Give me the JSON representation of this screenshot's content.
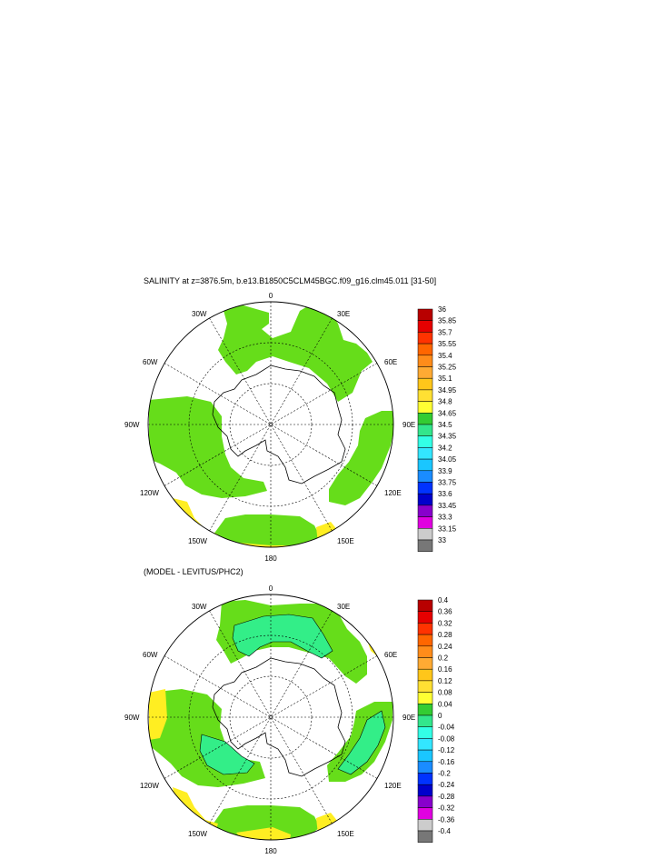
{
  "panels": [
    {
      "title": "SALINITY at z=3876.5m, b.e13.B1850C5CLM45BGC.f09_g16.clm45.011 [31-50]",
      "lon_labels": [
        "0",
        "30E",
        "60E",
        "90E",
        "120E",
        "150E",
        "180",
        "150W",
        "120W",
        "90W",
        "60W",
        "30W"
      ],
      "colorbar": {
        "labels": [
          "36",
          "35.85",
          "35.7",
          "35.55",
          "35.4",
          "35.25",
          "35.1",
          "34.95",
          "34.8",
          "34.65",
          "34.5",
          "34.35",
          "34.2",
          "34.05",
          "33.9",
          "33.75",
          "33.6",
          "33.45",
          "33.3",
          "33.15",
          "33"
        ],
        "colors": [
          "#b80000",
          "#e60000",
          "#ff3300",
          "#ff6600",
          "#ff8c1a",
          "#ffaa33",
          "#ffc61a",
          "#ffe033",
          "#ffff33",
          "#33cc33",
          "#33e68c",
          "#33ffe6",
          "#33e6ff",
          "#1ac6ff",
          "#1a8cff",
          "#0033ff",
          "#0000cc",
          "#8800cc",
          "#e000e0",
          "#cccccc",
          "#777777"
        ]
      },
      "fill_primary": "#66dd1a",
      "fill_secondary": "#ffee22"
    },
    {
      "title": "(MODEL - LEVITUS/PHC2)",
      "lon_labels": [
        "0",
        "30E",
        "60E",
        "90E",
        "120E",
        "150E",
        "180",
        "150W",
        "120W",
        "90W",
        "60W",
        "30W"
      ],
      "colorbar": {
        "labels": [
          "0.4",
          "0.36",
          "0.32",
          "0.28",
          "0.24",
          "0.2",
          "0.16",
          "0.12",
          "0.08",
          "0.04",
          "0",
          "-0.04",
          "-0.08",
          "-0.12",
          "-0.16",
          "-0.2",
          "-0.24",
          "-0.28",
          "-0.32",
          "-0.36",
          "-0.4"
        ],
        "colors": [
          "#b80000",
          "#e60000",
          "#ff3300",
          "#ff6600",
          "#ff8c1a",
          "#ffaa33",
          "#ffc61a",
          "#ffe033",
          "#ffff33",
          "#33cc33",
          "#33e68c",
          "#33ffe6",
          "#33e6ff",
          "#1ac6ff",
          "#1a8cff",
          "#0033ff",
          "#0000cc",
          "#8800cc",
          "#e000e0",
          "#cccccc",
          "#777777"
        ]
      },
      "fill_primary": "#66dd1a",
      "fill_secondary": "#33ee88",
      "fill_tertiary": "#ffee22"
    }
  ]
}
